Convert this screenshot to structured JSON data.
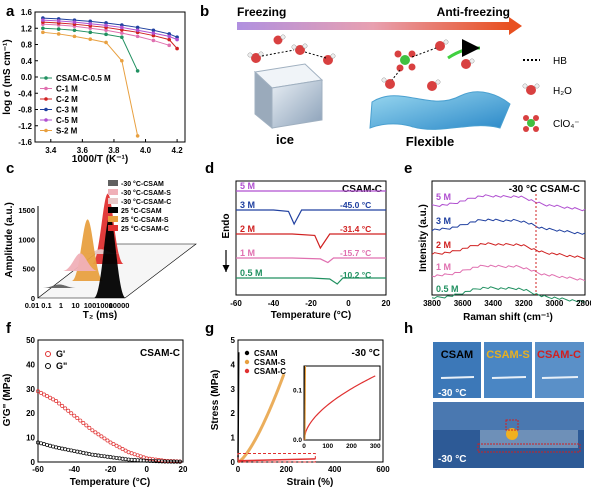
{
  "panels": {
    "a": {
      "letter": "a",
      "xlabel": "1000/T  (K⁻¹)",
      "ylabel": "log σ (mS cm⁻¹)",
      "xticks": [
        "3.4",
        "3.6",
        "3.8",
        "4.0",
        "4.2"
      ],
      "yticks": [
        "1.6",
        "1.2",
        "0.8",
        "0.4",
        "0.0",
        "-0.4",
        "-0.8",
        "-1.2",
        "-1.6"
      ],
      "legend": [
        "CSAM-C-0.5 M",
        "C-1 M",
        "C-2 M",
        "C-3 M",
        "C-5 M",
        "S-2 M"
      ]
    },
    "b": {
      "letter": "b",
      "freezing": "Freezing",
      "anti_freezing": "Anti-freezing",
      "ice": "ice",
      "flexible": "Flexible",
      "legend": [
        "HB",
        "H₂O",
        "ClO₄⁻"
      ]
    },
    "c": {
      "letter": "c",
      "xlabel": "T₂ (ms)",
      "ylabel": "Amplitude (a.u.)",
      "xticks": [
        "0.01",
        "0.1",
        "1",
        "10",
        "100",
        "1000",
        "10000"
      ],
      "zticks": [
        "0",
        "500",
        "1000",
        "1500"
      ],
      "legend": [
        "-30 °C-CSAM",
        "-30 °C-CSAM-S",
        "-30 °C-CSAM-C",
        "25 °C-CSAM",
        "25 °C-CSAM-S",
        "25 °C-CSAM-C"
      ]
    },
    "d": {
      "letter": "d",
      "title": "CSAM-C",
      "xlabel": "Temperature (°C)",
      "ylabel": "Endo",
      "xticks": [
        "-60",
        "-40",
        "-20",
        "0",
        "20"
      ],
      "labels": [
        "5 M",
        "3 M",
        "2 M",
        "1 M",
        "0.5 M"
      ],
      "temps": [
        "-45.0 °C",
        "-31.4 °C",
        "-15.7 °C",
        "-10.2 °C"
      ]
    },
    "e": {
      "letter": "e",
      "title": "-30 °C CSAM-C",
      "xlabel": "Raman shift (cm⁻¹)",
      "ylabel": "Intensity (a.u.)",
      "xticks": [
        "3800",
        "3600",
        "3400",
        "3200",
        "3000",
        "2800"
      ],
      "labels": [
        "5 M",
        "3 M",
        "2 M",
        "1 M",
        "0.5 M"
      ]
    },
    "f": {
      "letter": "f",
      "title": "CSAM-C",
      "xlabel": "Temperature (°C)",
      "ylabel": "G'G\" (MPa)",
      "xticks": [
        "-60",
        "-40",
        "-20",
        "0",
        "20"
      ],
      "yticks": [
        "0",
        "10",
        "20",
        "30",
        "40",
        "50"
      ],
      "legend": [
        "G'",
        "G\""
      ]
    },
    "g": {
      "letter": "g",
      "title": "-30 °C",
      "xlabel": "Strain (%)",
      "ylabel": "Stress (MPa)",
      "xticks": [
        "0",
        "200",
        "400",
        "600"
      ],
      "yticks": [
        "0",
        "1",
        "2",
        "3",
        "4",
        "5"
      ],
      "inset_xticks": [
        "0",
        "100",
        "200",
        "300"
      ],
      "inset_yticks": [
        "0.0",
        "0.1"
      ],
      "legend": [
        "CSAM",
        "CSAM-S",
        "CSAM-C"
      ]
    },
    "h": {
      "letter": "h",
      "samples": [
        "CSAM",
        "CSAM-S",
        "CSAM-C"
      ],
      "temp_label": "-30 °C",
      "temp_label2": "-30 °C"
    }
  },
  "colors": {
    "csam": "#000000",
    "csam_s": "#e8a040",
    "csam_c": "#e03030",
    "m5": "#b050d0",
    "m3": "#2040a0",
    "m2": "#d02020",
    "m1": "#e070b0",
    "m05": "#209060"
  },
  "chart_data": [
    {
      "panel": "a",
      "type": "line",
      "x_range": [
        3.3,
        4.25
      ],
      "y_range": [
        -1.6,
        1.6
      ],
      "series": [
        {
          "name": "CSAM-C-0.5 M",
          "x": [
            3.35,
            3.45,
            3.55,
            3.65,
            3.75,
            3.85,
            3.95
          ],
          "y": [
            1.2,
            1.18,
            1.15,
            1.1,
            1.05,
            0.98,
            0.15
          ]
        },
        {
          "name": "C-1 M",
          "x": [
            3.35,
            3.45,
            3.55,
            3.65,
            3.75,
            3.85,
            3.95,
            4.05,
            4.15
          ],
          "y": [
            1.3,
            1.28,
            1.25,
            1.2,
            1.15,
            1.08,
            1.0,
            0.9,
            0.78
          ]
        },
        {
          "name": "C-2 M",
          "x": [
            3.35,
            3.45,
            3.55,
            3.65,
            3.75,
            3.85,
            3.95,
            4.05,
            4.15,
            4.2
          ],
          "y": [
            1.35,
            1.33,
            1.3,
            1.26,
            1.22,
            1.16,
            1.1,
            1.02,
            0.92,
            0.7
          ]
        },
        {
          "name": "C-3 M",
          "x": [
            3.35,
            3.45,
            3.55,
            3.65,
            3.75,
            3.85,
            3.95,
            4.05,
            4.15,
            4.2
          ],
          "y": [
            1.45,
            1.43,
            1.4,
            1.37,
            1.33,
            1.28,
            1.22,
            1.15,
            1.06,
            0.98
          ]
        },
        {
          "name": "C-5 M",
          "x": [
            3.35,
            3.45,
            3.55,
            3.65,
            3.75,
            3.85,
            3.95,
            4.05,
            4.15,
            4.2
          ],
          "y": [
            1.4,
            1.38,
            1.35,
            1.31,
            1.27,
            1.22,
            1.15,
            1.08,
            1.0,
            0.92
          ]
        },
        {
          "name": "S-2 M",
          "x": [
            3.35,
            3.45,
            3.55,
            3.65,
            3.75,
            3.85,
            3.95
          ],
          "y": [
            1.1,
            1.06,
            1.0,
            0.93,
            0.85,
            0.4,
            -1.45
          ]
        }
      ]
    },
    {
      "panel": "c",
      "type": "area",
      "x_scale": "log",
      "series": [
        {
          "name": "-30 °C-CSAM",
          "peak_x": 0.3,
          "peak_y": 60
        },
        {
          "name": "-30 °C-CSAM-S",
          "peak_x": 0.25,
          "peak_y": 300
        },
        {
          "name": "-30 °C-CSAM-C",
          "peak_x": 0.2,
          "peak_y": 80
        },
        {
          "name": "25 °C-CSAM",
          "peak_x": 900,
          "peak_y": 1400
        },
        {
          "name": "25 °C-CSAM-S",
          "peak_x": 0.8,
          "peak_y": 1050
        },
        {
          "name": "25 °C-CSAM-C",
          "peak_x": 0.6,
          "peak_y": 1200
        }
      ]
    },
    {
      "panel": "d",
      "type": "line",
      "x_range": [
        -60,
        20
      ],
      "series": [
        {
          "name": "5 M",
          "x": [
            -60,
            -40,
            -20,
            0,
            20
          ],
          "y": [
            0,
            0,
            0,
            0,
            0
          ]
        },
        {
          "name": "3 M",
          "x": [
            -60,
            -40,
            -32,
            -29,
            -25,
            0,
            20
          ],
          "y": [
            0,
            0,
            -0.1,
            -1,
            0,
            0,
            0
          ]
        },
        {
          "name": "2 M",
          "x": [
            -60,
            -30,
            -18,
            -15,
            -10,
            0,
            20
          ],
          "y": [
            0,
            0,
            -0.1,
            -1,
            0,
            0,
            0
          ]
        },
        {
          "name": "1 M",
          "x": [
            -60,
            -30,
            -15,
            -11,
            -8,
            0,
            20
          ],
          "y": [
            0,
            0,
            -0.1,
            -0.5,
            0,
            0,
            0
          ]
        },
        {
          "name": "0.5 M",
          "x": [
            -60,
            -20,
            -10,
            -6,
            -3,
            0,
            20
          ],
          "y": [
            0,
            0,
            -0.1,
            -0.6,
            0,
            0,
            0
          ]
        }
      ]
    },
    {
      "panel": "e",
      "type": "line",
      "x_range": [
        3800,
        2800
      ],
      "series": [
        {
          "name": "5 M"
        },
        {
          "name": "3 M"
        },
        {
          "name": "2 M"
        },
        {
          "name": "1 M"
        },
        {
          "name": "0.5 M"
        }
      ]
    },
    {
      "panel": "f",
      "type": "scatter",
      "x_range": [
        -60,
        20
      ],
      "y_range": [
        0,
        50
      ],
      "series": [
        {
          "name": "G'",
          "x": [
            -60,
            -50,
            -40,
            -30,
            -20,
            -10,
            0,
            10,
            20
          ],
          "y": [
            29,
            25,
            19,
            13,
            8,
            4,
            1.5,
            0.5,
            0.2
          ]
        },
        {
          "name": "G\"",
          "x": [
            -60,
            -50,
            -40,
            -30,
            -20,
            -10,
            0,
            10,
            20
          ],
          "y": [
            8,
            6,
            4.5,
            3,
            2,
            1,
            0.5,
            0.2,
            0.1
          ]
        }
      ]
    },
    {
      "panel": "g",
      "type": "line",
      "x_range": [
        0,
        600
      ],
      "y_range": [
        0,
        5
      ],
      "series": [
        {
          "name": "CSAM",
          "x": [
            0,
            1,
            2,
            3
          ],
          "y": [
            0,
            1.5,
            3,
            4.5
          ]
        },
        {
          "name": "CSAM-S",
          "x": [
            0,
            50,
            100,
            150,
            190
          ],
          "y": [
            0,
            0.8,
            2.2,
            3.3,
            3.6
          ]
        },
        {
          "name": "CSAM-C",
          "x": [
            0,
            20,
            50,
            100,
            150,
            200,
            250,
            300
          ],
          "y": [
            0,
            0.05,
            0.07,
            0.09,
            0.1,
            0.11,
            0.12,
            0.13
          ]
        }
      ]
    }
  ]
}
